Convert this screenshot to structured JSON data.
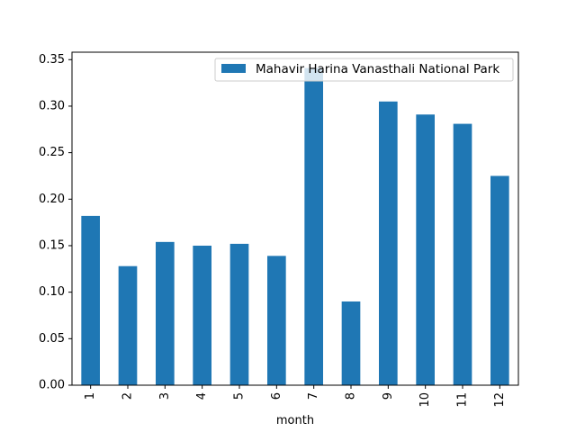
{
  "chart_data": {
    "type": "bar",
    "title": "",
    "xlabel": "month",
    "ylabel": "",
    "categories": [
      "1",
      "2",
      "3",
      "4",
      "5",
      "6",
      "7",
      "8",
      "9",
      "10",
      "11",
      "12"
    ],
    "series": [
      {
        "name": "Mahavir Harina Vanasthali National Park",
        "color": "#1f77b4",
        "values": [
          0.182,
          0.128,
          0.154,
          0.15,
          0.152,
          0.139,
          0.341,
          0.09,
          0.305,
          0.291,
          0.281,
          0.225
        ]
      }
    ],
    "ylim": [
      0,
      0.358
    ],
    "yticks": [
      0.0,
      0.05,
      0.1,
      0.15,
      0.2,
      0.25,
      0.3,
      0.35
    ],
    "ytick_labels": [
      "0.00",
      "0.05",
      "0.10",
      "0.15",
      "0.20",
      "0.25",
      "0.30",
      "0.35"
    ],
    "grid": false,
    "legend": "top-right"
  }
}
